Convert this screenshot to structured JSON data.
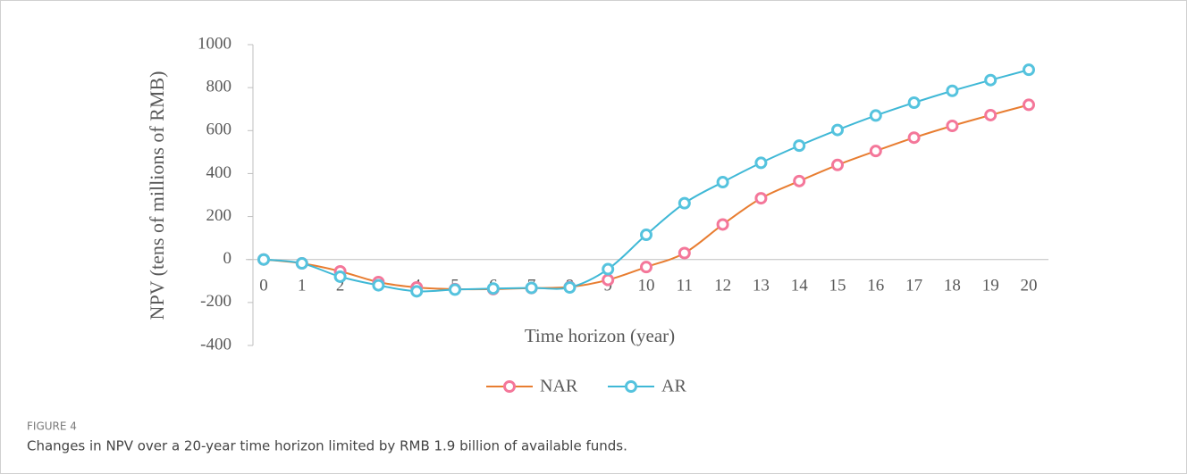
{
  "chart_data": {
    "type": "line",
    "y_label": "NPV (tens of millions of RMB)",
    "x_label": "Time horizon (year)",
    "figure_label": "FIGURE 4",
    "caption": "Changes in NPV over a 20-year time horizon limited by RMB 1.9 billion of available funds.",
    "categories": [
      "0",
      "1",
      "2",
      "3",
      "4",
      "5",
      "6",
      "7",
      "8",
      "9",
      "10",
      "11",
      "12",
      "13",
      "14",
      "15",
      "16",
      "17",
      "18",
      "19",
      "20"
    ],
    "series": [
      {
        "name": "NAR",
        "color": "#e87d31",
        "marker_color": "#f4779a",
        "values": [
          0,
          -18,
          -55,
          -105,
          -130,
          -138,
          -138,
          -133,
          -128,
          -95,
          -35,
          30,
          163,
          285,
          365,
          440,
          505,
          567,
          622,
          672,
          720
        ]
      },
      {
        "name": "AR",
        "color": "#3fb8d6",
        "marker_color": "#55c3de",
        "values": [
          0,
          -18,
          -80,
          -120,
          -148,
          -140,
          -135,
          -132,
          -130,
          -45,
          115,
          262,
          360,
          450,
          530,
          603,
          670,
          730,
          785,
          835,
          883
        ]
      }
    ],
    "ylim": [
      -400,
      1000
    ],
    "yticks": [
      -400,
      -200,
      0,
      200,
      400,
      600,
      800,
      1000
    ]
  }
}
